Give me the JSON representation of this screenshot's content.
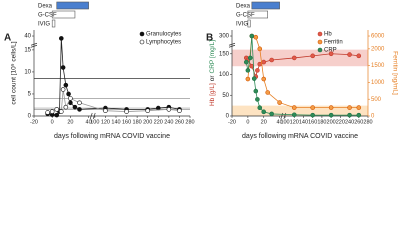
{
  "chart_data": [
    {
      "type": "line",
      "panel": "A",
      "treatments": [
        {
          "name": "Dexa",
          "start": 5,
          "end": 40,
          "color": "#4a7fcf"
        },
        {
          "name": "G-CSF",
          "start": 0,
          "end": 25,
          "color": "#ffffff"
        },
        {
          "name": "IVIG",
          "start": 0,
          "end": 3,
          "color": "#ffffff"
        }
      ],
      "xlabel": "days following mRNA COVID vaccine",
      "ylabel": "cell count [10⁹ cells/L]",
      "xlim": [
        -20,
        280
      ],
      "xbreak": [
        40,
        100
      ],
      "xticks": [
        -20,
        0,
        20,
        40,
        100,
        120,
        140,
        160,
        180,
        200,
        220,
        240,
        260,
        280
      ],
      "ylim": [
        0,
        45
      ],
      "ybreak": [
        16,
        35
      ],
      "yticks": [
        0,
        5,
        10,
        15,
        40
      ],
      "hlines": [
        8.5,
        4,
        1.8,
        1.5
      ],
      "legend": "upper right",
      "series": [
        {
          "name": "Granulocytes",
          "color": "#111111",
          "fill": "#111111",
          "line": "#222222",
          "x": [
            -5,
            0,
            5,
            8,
            10,
            12,
            15,
            18,
            20,
            25,
            30,
            120,
            160,
            200,
            220,
            240,
            260
          ],
          "values": [
            0.5,
            0.3,
            0.2,
            1,
            38,
            11,
            7,
            5,
            3,
            2,
            1.5,
            1.8,
            1.5,
            1.5,
            1.8,
            2,
            1.5
          ]
        },
        {
          "name": "Lymphocytes",
          "color": "#111111",
          "fill": "#ffffff",
          "line": "#999999",
          "x": [
            -5,
            0,
            5,
            10,
            12,
            15,
            20,
            30,
            120,
            160,
            200,
            240,
            260
          ],
          "values": [
            0.8,
            1,
            1.5,
            1,
            6,
            2,
            4,
            3,
            1.2,
            1,
            1.2,
            1.5,
            1.2
          ]
        }
      ]
    },
    {
      "type": "line",
      "panel": "B",
      "treatments": [
        {
          "name": "Dexa",
          "start": 5,
          "end": 40,
          "color": "#4a7fcf"
        },
        {
          "name": "G-CSF",
          "start": 0,
          "end": 25,
          "color": "#ffffff"
        },
        {
          "name": "IVIG",
          "start": 0,
          "end": 3,
          "color": "#ffffff"
        }
      ],
      "xlabel": "days following mRNA COVID vaccine",
      "ylabel_parts": [
        {
          "text": "Hb [g/L]",
          "color": "#c0392b"
        },
        {
          "text": "or",
          "color": "#222222"
        },
        {
          "text": "CRP [mg/L]",
          "color": "#2e8b57"
        }
      ],
      "y2label": "Ferritin [ng/mL]",
      "y2color": "#e67e22",
      "xlim": [
        -20,
        280
      ],
      "xbreak": [
        40,
        100
      ],
      "xticks": [
        -20,
        0,
        20,
        40,
        100,
        120,
        140,
        160,
        180,
        200,
        220,
        240,
        260,
        280
      ],
      "ylim": [
        0,
        350
      ],
      "ybreak": [
        170,
        250
      ],
      "yticks": [
        0,
        50,
        100,
        150,
        300
      ],
      "y2lim": [
        0,
        7000
      ],
      "y2break": [
        2100,
        5000
      ],
      "y2ticks": [
        0,
        500,
        1000,
        1500,
        2000,
        6000
      ],
      "bands": [
        {
          "from": 120,
          "to": 160,
          "color": "#f6cfcb"
        },
        {
          "from": 0,
          "to": 25,
          "color": "#fde3c2"
        }
      ],
      "legend": "upper right",
      "series": [
        {
          "name": "Hb",
          "color": "#c0392b",
          "fill": "#e05a4a",
          "line": "#c0392b",
          "x": [
            -2,
            0,
            5,
            10,
            12,
            15,
            20,
            30,
            120,
            160,
            200,
            240,
            260
          ],
          "values": [
            140,
            135,
            120,
            95,
            110,
            125,
            130,
            135,
            140,
            145,
            150,
            148,
            145
          ]
        },
        {
          "name": "Ferritin",
          "color": "#d35400",
          "fill": "#f39c45",
          "line": "#e67e22",
          "axis": "y2",
          "x": [
            0,
            5,
            10,
            15,
            20,
            25,
            40,
            120,
            160,
            200,
            240,
            260
          ],
          "values": [
            1100,
            6000,
            5800,
            2000,
            1100,
            700,
            400,
            250,
            250,
            250,
            250,
            250
          ]
        },
        {
          "name": "CRP",
          "color": "#1e7045",
          "fill": "#2e8b57",
          "line": "#2e8b57",
          "x": [
            -2,
            0,
            3,
            5,
            8,
            10,
            12,
            15,
            20,
            30,
            120,
            160,
            200,
            240,
            260
          ],
          "values": [
            130,
            110,
            140,
            300,
            90,
            60,
            40,
            20,
            10,
            5,
            3,
            2,
            2,
            2,
            2
          ]
        }
      ]
    }
  ]
}
